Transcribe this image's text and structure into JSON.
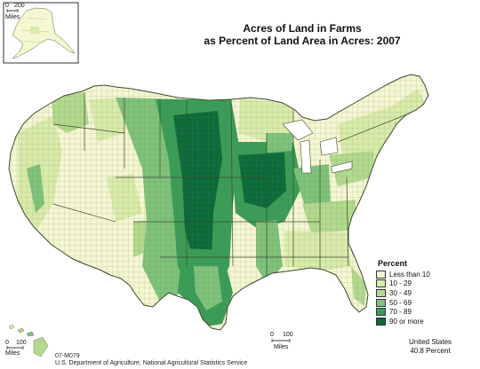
{
  "title": {
    "line1": "Acres of Land in Farms",
    "line2": "as Percent of Land Area in Acres:  2007"
  },
  "legend": {
    "title": "Percent",
    "classes": [
      {
        "label": "Less than 10",
        "color": "#f5f6d2"
      },
      {
        "label": "10 - 29",
        "color": "#d9ebaa"
      },
      {
        "label": "30 - 49",
        "color": "#b2d98e"
      },
      {
        "label": "50 - 69",
        "color": "#7fc27a"
      },
      {
        "label": "70 - 89",
        "color": "#3a9d57"
      },
      {
        "label": "90 or more",
        "color": "#0b6b3a"
      }
    ]
  },
  "summary": {
    "line1": "United States",
    "line2": "40.8 Percent"
  },
  "scales": {
    "alaska": {
      "zero": "0",
      "value": "200",
      "unit": "Miles"
    },
    "hawaii": {
      "zero": "0",
      "value": "100",
      "unit": "Miles"
    },
    "main": {
      "zero": "0",
      "value": "100",
      "unit": "Miles"
    }
  },
  "credits": {
    "map_id": "07-M079",
    "source": "U.S. Department of Agriculture, National Agricultural Statistics Service"
  },
  "colors": {
    "state_border": "#3b4a2f",
    "inset_border": "#000000"
  }
}
